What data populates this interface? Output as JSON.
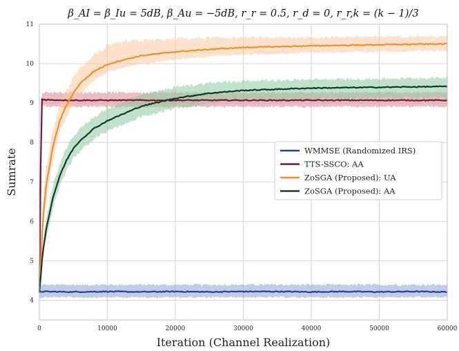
{
  "chart_data": {
    "type": "line",
    "title": "β_AI = β_Iu = 5dB, β_Au = −5dB, r_r = 0.5, r_d = 0, r_r,k = (k − 1)/3",
    "xlabel": "Iteration (Channel Realization)",
    "ylabel": "Sumrate",
    "xlim": [
      0,
      60000
    ],
    "ylim": [
      3.5,
      11
    ],
    "xticks": [
      0,
      10000,
      20000,
      30000,
      40000,
      50000,
      60000
    ],
    "xtick_labels": [
      "0",
      "10000",
      "20000",
      "30000",
      "40000",
      "50000",
      "60000"
    ],
    "yticks": [
      4,
      5,
      6,
      7,
      8,
      9,
      10,
      11
    ],
    "ytick_labels": [
      "4",
      "5",
      "6",
      "7",
      "8",
      "9",
      "10",
      "11"
    ],
    "grid": true,
    "legend_position": "center-right",
    "series": [
      {
        "name": "WMMSE (Randomized IRS)",
        "color": "#2340a0",
        "band_color": "#8fa3cf",
        "x": [
          0,
          5000,
          10000,
          15000,
          20000,
          25000,
          30000,
          35000,
          40000,
          45000,
          50000,
          55000,
          60000
        ],
        "values": [
          4.22,
          4.21,
          4.22,
          4.21,
          4.22,
          4.21,
          4.22,
          4.22,
          4.21,
          4.22,
          4.21,
          4.22,
          4.21
        ],
        "band_lower": [
          4.05,
          4.05,
          4.05,
          4.05,
          4.05,
          4.05,
          4.05,
          4.05,
          4.05,
          4.05,
          4.05,
          4.05,
          4.05
        ],
        "band_upper": [
          4.42,
          4.42,
          4.42,
          4.42,
          4.42,
          4.42,
          4.42,
          4.42,
          4.42,
          4.42,
          4.42,
          4.42,
          4.42
        ]
      },
      {
        "name": "TTS-SSCO: AA",
        "color": "#7a1530",
        "band_color": "#d98a91",
        "x": [
          0,
          300,
          1000,
          5000,
          10000,
          20000,
          30000,
          40000,
          50000,
          60000
        ],
        "values": [
          4.2,
          9.1,
          9.08,
          9.07,
          9.07,
          9.07,
          9.07,
          9.07,
          9.07,
          9.07
        ],
        "band_lower": [
          4.2,
          8.9,
          8.88,
          8.88,
          8.88,
          8.88,
          8.88,
          8.88,
          8.88,
          8.88
        ],
        "band_upper": [
          4.2,
          9.3,
          9.3,
          9.3,
          9.3,
          9.3,
          9.3,
          9.3,
          9.3,
          9.3
        ]
      },
      {
        "name": "ZoSGA (Proposed): UA",
        "color": "#f0902a",
        "band_color": "#f9c9a2",
        "x": [
          0,
          500,
          1000,
          2000,
          3000,
          4000,
          5000,
          6000,
          8000,
          10000,
          12000,
          15000,
          20000,
          25000,
          30000,
          40000,
          50000,
          60000
        ],
        "values": [
          4.2,
          6.0,
          6.9,
          7.9,
          8.55,
          8.95,
          9.25,
          9.5,
          9.8,
          9.98,
          10.08,
          10.2,
          10.3,
          10.36,
          10.41,
          10.45,
          10.48,
          10.5
        ],
        "band_lower": [
          4.2,
          5.6,
          6.5,
          7.5,
          8.2,
          8.6,
          8.95,
          9.2,
          9.55,
          9.75,
          9.85,
          9.95,
          10.08,
          10.15,
          10.2,
          10.25,
          10.28,
          10.3
        ],
        "band_upper": [
          4.2,
          6.5,
          7.4,
          8.4,
          9.0,
          9.4,
          9.7,
          9.95,
          10.3,
          10.5,
          10.6,
          10.65,
          10.68,
          10.7,
          10.7,
          10.7,
          10.72,
          10.72
        ]
      },
      {
        "name": "ZoSGA (Proposed): AA",
        "color": "#0e3b2a",
        "band_color": "#8ccb9f",
        "x": [
          0,
          500,
          1000,
          2000,
          3000,
          4000,
          5000,
          6000,
          8000,
          10000,
          12000,
          15000,
          20000,
          25000,
          30000,
          40000,
          50000,
          60000
        ],
        "values": [
          4.2,
          5.2,
          5.8,
          6.6,
          7.15,
          7.55,
          7.85,
          8.05,
          8.35,
          8.55,
          8.7,
          8.92,
          9.12,
          9.25,
          9.32,
          9.38,
          9.4,
          9.42
        ],
        "band_lower": [
          4.2,
          5.0,
          5.55,
          6.3,
          6.85,
          7.25,
          7.55,
          7.75,
          8.05,
          8.25,
          8.4,
          8.6,
          8.82,
          8.95,
          9.02,
          9.05,
          9.08,
          9.1
        ],
        "band_upper": [
          4.2,
          5.45,
          6.1,
          6.95,
          7.5,
          7.9,
          8.2,
          8.4,
          8.7,
          8.9,
          9.05,
          9.25,
          9.45,
          9.55,
          9.6,
          9.63,
          9.65,
          9.68
        ]
      }
    ]
  }
}
